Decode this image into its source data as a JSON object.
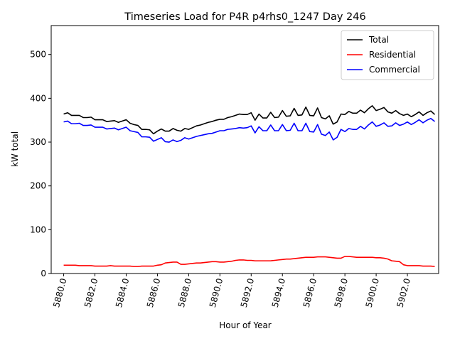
{
  "chart_data": {
    "type": "line",
    "title": "Timeseries Load for P4R p4rhs0_1247  Day 246",
    "xlabel": "Hour of Year",
    "ylabel": "kW total",
    "xlim": [
      5879.2,
      5904.0
    ],
    "ylim": [
      0,
      566
    ],
    "x_ticks": [
      5880,
      5882,
      5884,
      5886,
      5888,
      5890,
      5892,
      5894,
      5896,
      5898,
      5900,
      5902
    ],
    "x_tick_labels": [
      "5880.0",
      "5882.0",
      "5884.0",
      "5886.0",
      "5888.0",
      "5890.0",
      "5892.0",
      "5894.0",
      "5896.0",
      "5898.0",
      "5900.0",
      "5902.0"
    ],
    "y_ticks": [
      0,
      100,
      200,
      300,
      400,
      500
    ],
    "y_tick_labels": [
      "0",
      "100",
      "200",
      "300",
      "400",
      "500"
    ],
    "x_start": 5880,
    "x_step": 0.25,
    "legend_position": "top-right",
    "grid": false,
    "series": [
      {
        "name": "Total",
        "color": "#000000",
        "values": [
          364,
          367,
          361,
          361,
          361,
          356,
          356,
          357,
          351,
          351,
          351,
          347,
          348,
          349,
          345,
          348,
          351,
          343,
          340,
          338,
          329,
          329,
          328,
          319,
          325,
          330,
          325,
          325,
          331,
          327,
          325,
          331,
          329,
          333,
          337,
          339,
          342,
          345,
          347,
          350,
          352,
          352,
          356,
          358,
          361,
          364,
          363,
          363,
          367,
          350,
          364,
          355,
          355,
          368,
          356,
          357,
          372,
          359,
          360,
          377,
          361,
          362,
          380,
          361,
          360,
          378,
          356,
          353,
          360,
          341,
          346,
          364,
          363,
          370,
          366,
          366,
          373,
          367,
          376,
          383,
          372,
          375,
          379,
          369,
          366,
          372,
          365,
          361,
          364,
          358,
          363,
          369,
          361,
          367,
          371,
          363
        ]
      },
      {
        "name": "Residential",
        "color": "#ff0000",
        "values": [
          19,
          19,
          19,
          19,
          18,
          18,
          18,
          18,
          17,
          17,
          17,
          17,
          18,
          17,
          17,
          17,
          17,
          17,
          16,
          16,
          17,
          17,
          17,
          17,
          19,
          20,
          24,
          25,
          26,
          26,
          21,
          21,
          22,
          23,
          24,
          24,
          25,
          26,
          27,
          27,
          26,
          26,
          27,
          28,
          30,
          31,
          31,
          30,
          30,
          29,
          29,
          29,
          29,
          29,
          30,
          31,
          32,
          33,
          33,
          34,
          35,
          36,
          37,
          37,
          37,
          38,
          38,
          38,
          37,
          36,
          35,
          35,
          39,
          39,
          38,
          37,
          37,
          37,
          37,
          37,
          36,
          36,
          35,
          33,
          29,
          28,
          27,
          20,
          18,
          18,
          18,
          18,
          17,
          17,
          17,
          16
        ]
      },
      {
        "name": "Commercial",
        "color": "#0000ff",
        "values": [
          346,
          348,
          342,
          342,
          343,
          338,
          338,
          339,
          334,
          334,
          334,
          330,
          331,
          332,
          328,
          331,
          334,
          326,
          324,
          322,
          312,
          312,
          311,
          302,
          306,
          310,
          301,
          300,
          305,
          301,
          304,
          310,
          307,
          310,
          313,
          315,
          317,
          319,
          320,
          323,
          326,
          326,
          329,
          330,
          331,
          333,
          332,
          333,
          337,
          321,
          335,
          326,
          326,
          339,
          326,
          326,
          340,
          326,
          327,
          343,
          326,
          326,
          343,
          324,
          323,
          340,
          318,
          315,
          323,
          305,
          311,
          329,
          324,
          331,
          329,
          329,
          336,
          330,
          339,
          346,
          336,
          339,
          344,
          336,
          337,
          344,
          338,
          341,
          346,
          340,
          345,
          351,
          344,
          350,
          354,
          347
        ]
      }
    ]
  }
}
